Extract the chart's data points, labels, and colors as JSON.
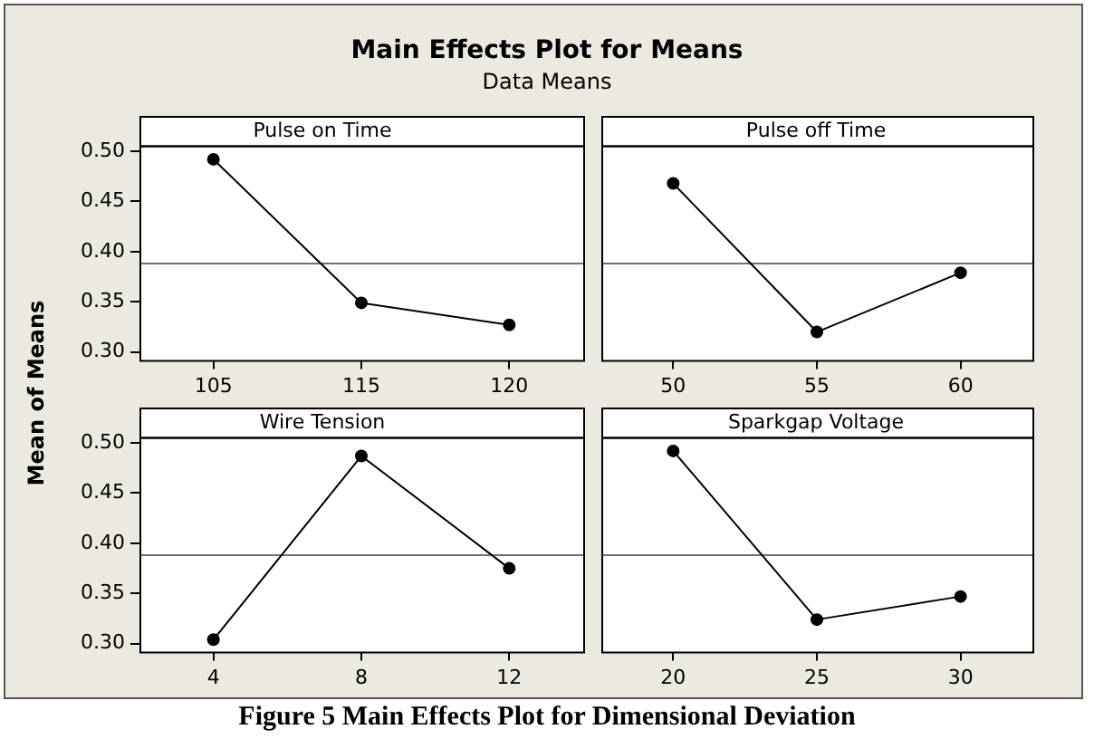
{
  "chart_data": [
    {
      "type": "line",
      "title": "Pulse on Time",
      "ylabel": "Mean of Means",
      "annotations": [
        "Main Effects Plot for Means",
        "Data Means",
        "Figure 5 Main Effects Plot for Dimensional Deviation"
      ],
      "categories": [
        "105",
        "115",
        "120"
      ],
      "values": [
        0.492,
        0.349,
        0.327
      ],
      "color": "#000000",
      "marker": "circle",
      "ylim": [
        0.292,
        0.506
      ],
      "yticks": [
        {
          "value": 0.3,
          "label": "0.30"
        },
        {
          "value": 0.35,
          "label": "0.35"
        },
        {
          "value": 0.4,
          "label": "0.40"
        },
        {
          "value": 0.45,
          "label": "0.45"
        },
        {
          "value": 0.5,
          "label": "0.50"
        }
      ],
      "ref_lines": [
        {
          "axis": "y",
          "value": 0.389,
          "color": "#707070"
        }
      ],
      "legend": false,
      "grid": false
    },
    {
      "type": "line",
      "title": "Pulse off Time",
      "categories": [
        "50",
        "55",
        "60"
      ],
      "values": [
        0.468,
        0.32,
        0.379
      ],
      "color": "#000000",
      "marker": "circle",
      "ylim": [
        0.292,
        0.506
      ],
      "ref_lines": [
        {
          "axis": "y",
          "value": 0.389,
          "color": "#707070"
        }
      ],
      "legend": false,
      "grid": false,
      "tick_labels": "x"
    },
    {
      "type": "line",
      "title": "Wire Tension",
      "categories": [
        "4",
        "8",
        "12"
      ],
      "values": [
        0.304,
        0.487,
        0.375
      ],
      "color": "#000000",
      "marker": "circle",
      "ylim": [
        0.292,
        0.506
      ],
      "yticks": [
        {
          "value": 0.3,
          "label": "0.30"
        },
        {
          "value": 0.35,
          "label": "0.35"
        },
        {
          "value": 0.4,
          "label": "0.40"
        },
        {
          "value": 0.45,
          "label": "0.45"
        },
        {
          "value": 0.5,
          "label": "0.50"
        }
      ],
      "ref_lines": [
        {
          "axis": "y",
          "value": 0.389,
          "color": "#707070"
        }
      ],
      "legend": false,
      "grid": false
    },
    {
      "type": "line",
      "title": "Sparkgap Voltage",
      "categories": [
        "20",
        "25",
        "30"
      ],
      "values": [
        0.492,
        0.324,
        0.347
      ],
      "color": "#000000",
      "marker": "circle",
      "ylim": [
        0.292,
        0.506
      ],
      "ref_lines": [
        {
          "axis": "y",
          "value": 0.389,
          "color": "#707070"
        }
      ],
      "legend": false,
      "grid": false,
      "tick_labels": "x"
    }
  ]
}
